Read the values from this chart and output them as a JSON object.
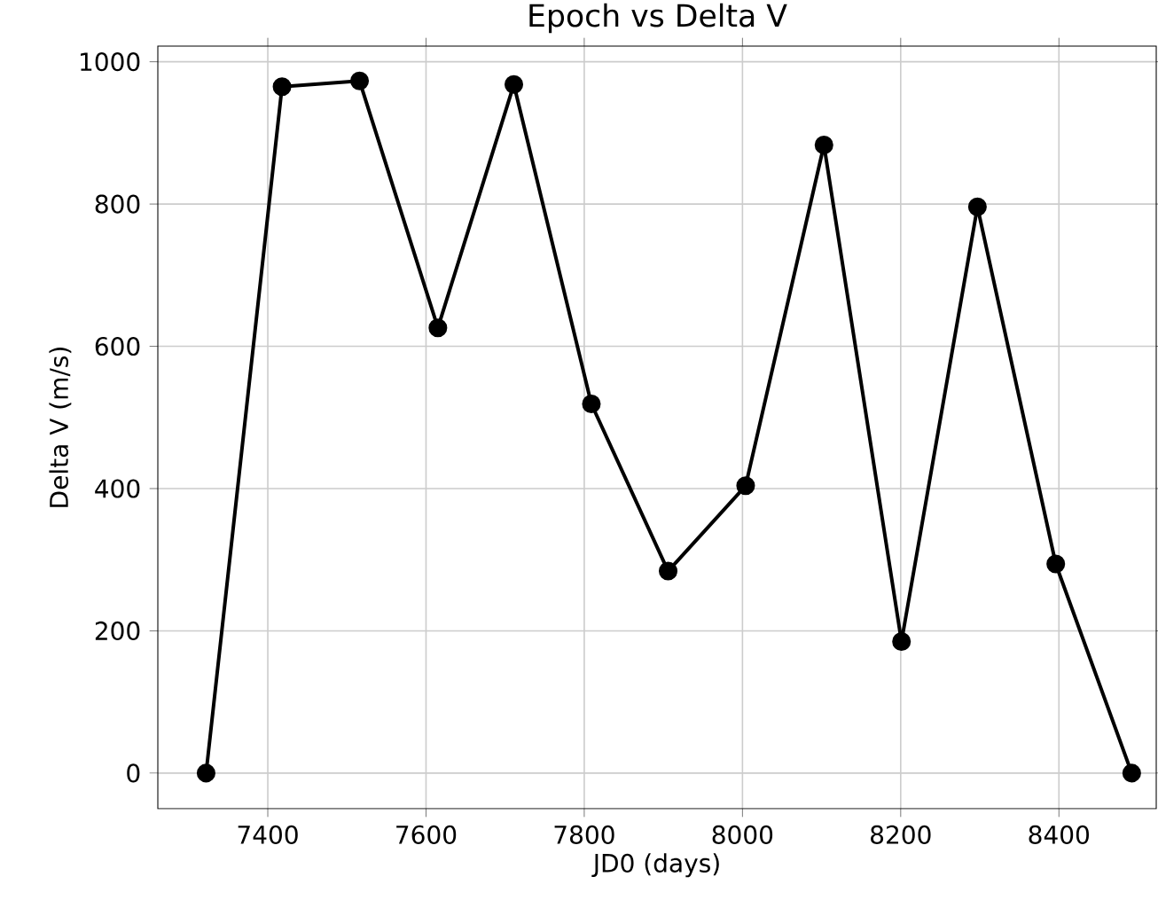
{
  "chart_data": {
    "type": "line",
    "title": "Epoch vs Delta V",
    "xlabel": "JD0 (days)",
    "ylabel": "Delta V (m/s)",
    "x": [
      7322,
      7418,
      7516,
      7615,
      7711,
      7809,
      7906,
      8004,
      8103,
      8201,
      8297,
      8396,
      8492
    ],
    "series": [
      {
        "color": "#000000",
        "values": [
          0,
          965,
          973,
          626,
          968,
          519,
          284,
          404,
          883,
          185,
          796,
          294,
          0
        ]
      }
    ],
    "xlim": [
      7261,
      8523
    ],
    "ylim": [
      -50,
      1022
    ],
    "xticks": [
      7400,
      7600,
      7800,
      8000,
      8200,
      8400
    ],
    "yticks": [
      0,
      200,
      400,
      600,
      800,
      1000
    ],
    "grid": true,
    "marker": "circle",
    "line_style": "solid"
  }
}
